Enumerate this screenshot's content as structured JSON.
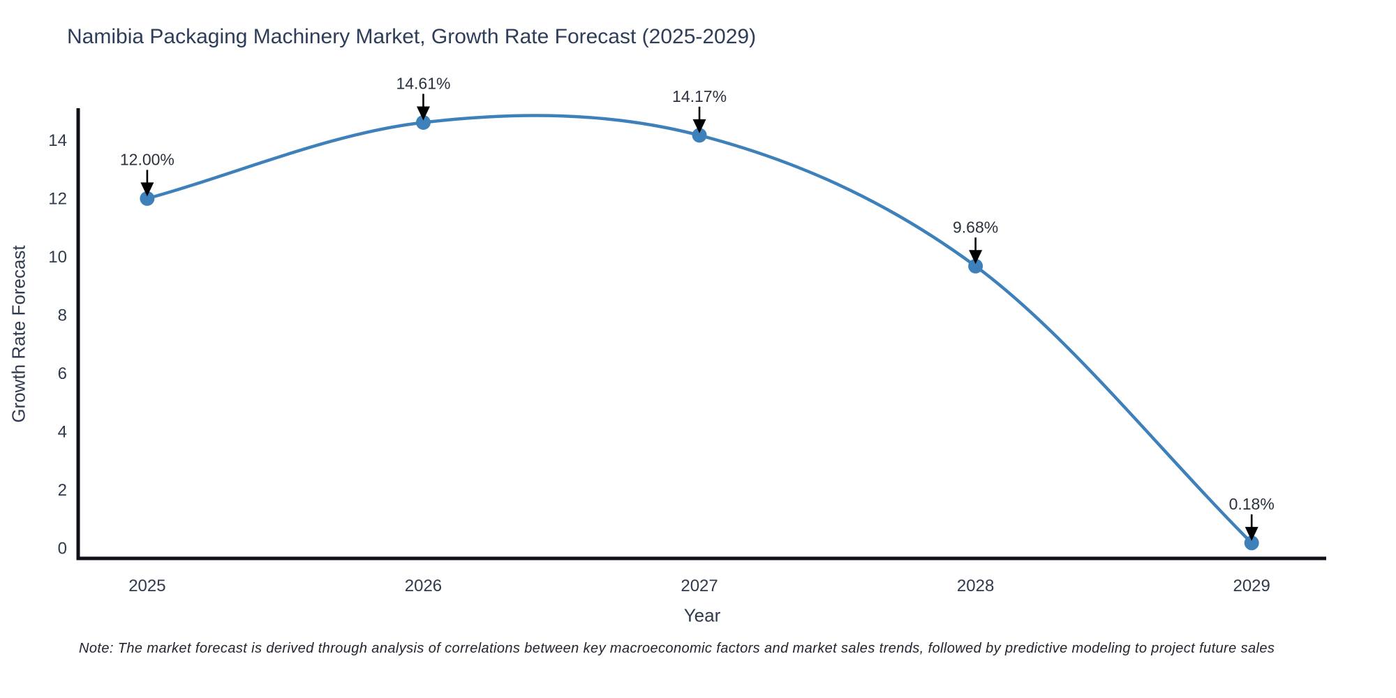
{
  "chart_data": {
    "type": "line",
    "title": "Namibia Packaging Machinery Market, Growth Rate Forecast (2025-2029)",
    "xlabel": "Year",
    "ylabel": "Growth Rate Forecast",
    "x": [
      2025,
      2026,
      2027,
      2028,
      2029
    ],
    "values": [
      12.0,
      14.61,
      14.17,
      9.68,
      0.18
    ],
    "data_labels": [
      "12.00%",
      "14.61%",
      "14.17%",
      "9.68%",
      "0.18%"
    ],
    "xticks": [
      "2025",
      "2026",
      "2027",
      "2028",
      "2029"
    ],
    "yticks": [
      0,
      2,
      4,
      6,
      8,
      10,
      12,
      14
    ],
    "xlim": [
      2024.75,
      2029.27
    ],
    "ylim": [
      -0.35,
      15.1
    ],
    "grid": false,
    "legend": "none",
    "colors": {
      "line": "#3d80ba",
      "marker": "#3d80ba",
      "arrow": "#000000",
      "axis": "#0d1117",
      "tick_text": "#2f3a4d",
      "annotation_text": "#2b323e",
      "title_text": "#2e3d59"
    },
    "note": "Note: The market forecast is derived through analysis of correlations between key macroeconomic factors and market sales trends, followed by predictive modeling to project future sales"
  }
}
